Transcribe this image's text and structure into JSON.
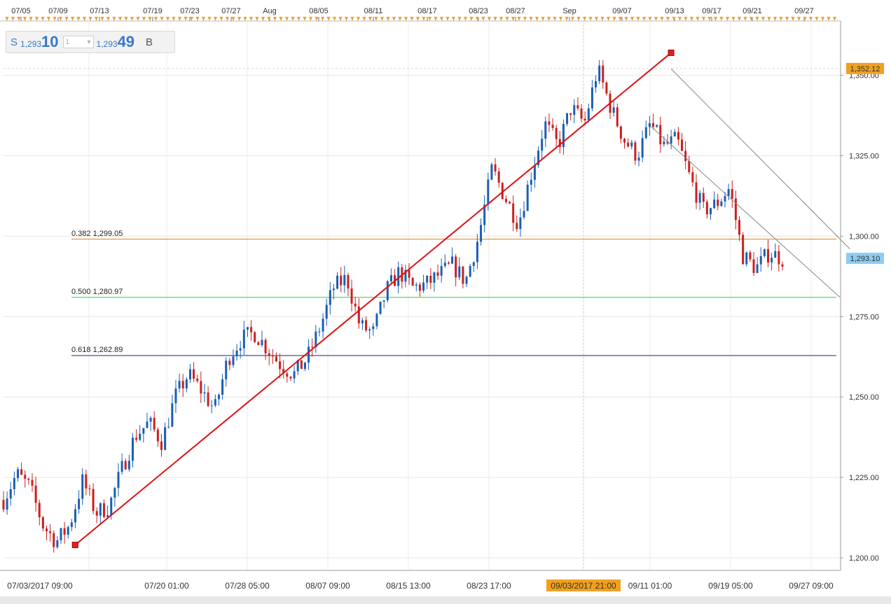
{
  "instrument_panel": {
    "sell_label": "S",
    "sell_prefix": "1,293",
    "sell_big": "10",
    "qty_value": "1",
    "buy_prefix": "1,293",
    "buy_big": "49",
    "buy_label": "B"
  },
  "colors": {
    "up_candle": "#1a5fb4",
    "down_candle": "#cc1f1f",
    "trend_line": "#dd1111",
    "fib_382": "#e07b1a",
    "fib_500": "#2ecc40",
    "fib_618": "#1a237e",
    "channel": "#888888",
    "current_price_bg": "#8ecdf0",
    "high_price_bg": "#f0a020",
    "date_highlight_bg": "#f0a020"
  },
  "chart_data": {
    "type": "candlestick",
    "ylim": [
      1197,
      1375
    ],
    "yticks": [
      "1,200.00",
      "1,225.00",
      "1,250.00",
      "1,275.00",
      "1,300.00",
      "1,325.00",
      "1,350.00"
    ],
    "ytick_values": [
      1200,
      1225,
      1250,
      1275,
      1300,
      1325,
      1350
    ],
    "top_axis_labels": [
      "07/05",
      "07/09",
      "07/13",
      "07/19",
      "07/23",
      "07/27",
      "Aug",
      "08/05",
      "08/11",
      "08/17",
      "08/23",
      "08/27",
      "Sep",
      "09/07",
      "09/13",
      "09/17",
      "09/21",
      "09/27"
    ],
    "bottom_axis_labels": [
      "07/03/2017 09:00",
      "07/20 01:00",
      "07/28 05:00",
      "08/07 09:00",
      "08/15 13:00",
      "08/23 17:00",
      "09/03/2017 21:00",
      "09/11 01:00",
      "09/19 05:00",
      "09/27 09:00"
    ],
    "highlighted_date": "09/03/2017 21:00",
    "current_price": "1,293.10",
    "current_price_value": 1293.1,
    "high_price": "1,352.12",
    "high_price_value": 1352.12,
    "fib_levels": [
      {
        "label": "0.382 1,299.05",
        "value": 1299.05
      },
      {
        "label": "0.500 1,280.97",
        "value": 1280.97
      },
      {
        "label": "0.618 1,262.89",
        "value": 1262.89
      }
    ],
    "path_closes": [
      1218,
      1226,
      1222,
      1210,
      1205,
      1210,
      1224,
      1214,
      1216,
      1228,
      1238,
      1242,
      1236,
      1250,
      1257,
      1252,
      1246,
      1262,
      1268,
      1270,
      1265,
      1260,
      1257,
      1262,
      1272,
      1284,
      1287,
      1272,
      1270,
      1283,
      1289,
      1284,
      1285,
      1288,
      1291,
      1286,
      1300,
      1321,
      1312,
      1304,
      1320,
      1335,
      1328,
      1340,
      1335,
      1352,
      1340,
      1330,
      1325,
      1335,
      1328,
      1330,
      1318,
      1308,
      1310,
      1315,
      1294,
      1290,
      1295,
      1293
    ],
    "trend_line": {
      "from": {
        "date": "07/10",
        "price": 1204
      },
      "to": {
        "date": "09/08",
        "price": 1357
      }
    },
    "channel_upper": {
      "from": {
        "date": "09/08",
        "price": 1352
      },
      "to": {
        "date": "09/26",
        "price": 1296
      }
    },
    "channel_lower": {
      "from": {
        "date": "09/06",
        "price": 1334
      },
      "to": {
        "date": "09/25",
        "price": 1281
      }
    }
  }
}
